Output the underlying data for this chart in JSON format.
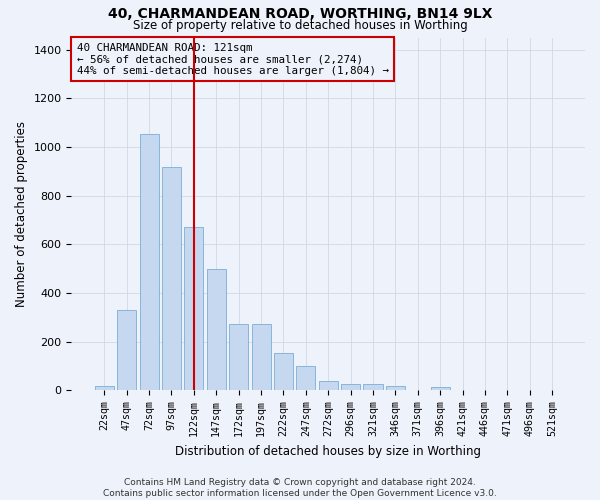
{
  "title": "40, CHARMANDEAN ROAD, WORTHING, BN14 9LX",
  "subtitle": "Size of property relative to detached houses in Worthing",
  "xlabel": "Distribution of detached houses by size in Worthing",
  "ylabel": "Number of detached properties",
  "footer_line1": "Contains HM Land Registry data © Crown copyright and database right 2024.",
  "footer_line2": "Contains public sector information licensed under the Open Government Licence v3.0.",
  "categories": [
    "22sqm",
    "47sqm",
    "72sqm",
    "97sqm",
    "122sqm",
    "147sqm",
    "172sqm",
    "197sqm",
    "222sqm",
    "247sqm",
    "272sqm",
    "296sqm",
    "321sqm",
    "346sqm",
    "371sqm",
    "396sqm",
    "421sqm",
    "446sqm",
    "471sqm",
    "496sqm",
    "521sqm"
  ],
  "values": [
    20,
    330,
    1055,
    920,
    670,
    500,
    275,
    275,
    155,
    100,
    38,
    25,
    25,
    18,
    0,
    13,
    0,
    0,
    0,
    0,
    0
  ],
  "bar_color": "#c5d8f0",
  "bar_edge_color": "#7aaed6",
  "background_color": "#eef2fa",
  "grid_color": "#d0d8e8",
  "vline_x": 4,
  "vline_color": "#cc0000",
  "annotation_text": "40 CHARMANDEAN ROAD: 121sqm\n← 56% of detached houses are smaller (2,274)\n44% of semi-detached houses are larger (1,804) →",
  "annotation_box_color": "#cc0000",
  "ylim": [
    0,
    1450
  ],
  "yticks": [
    0,
    200,
    400,
    600,
    800,
    1000,
    1200,
    1400
  ]
}
